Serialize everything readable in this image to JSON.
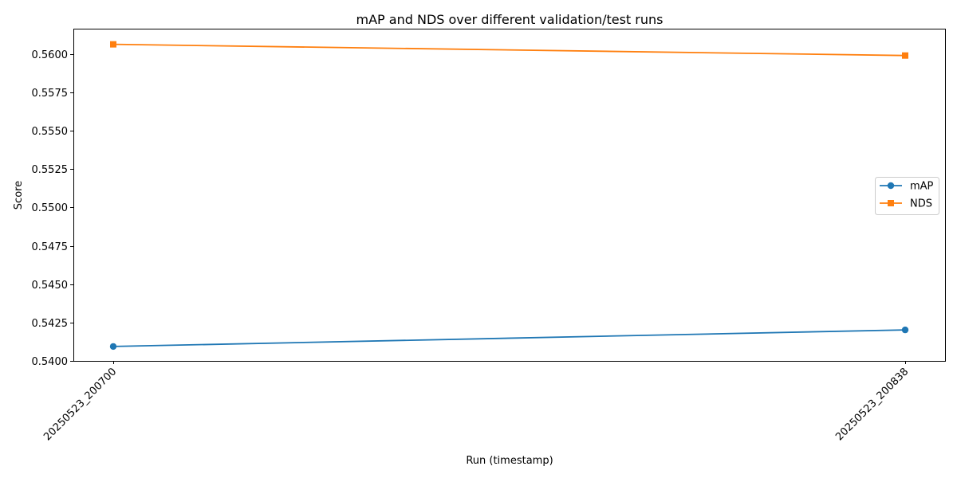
{
  "chart_data": {
    "type": "line",
    "title": "mAP and NDS over different validation/test runs",
    "xlabel": "Run (timestamp)",
    "ylabel": "Score",
    "categories": [
      "20250523_200700",
      "20250523_200838"
    ],
    "series": [
      {
        "name": "mAP",
        "values": [
          0.54094,
          0.54202
        ],
        "color": "#1f77b4",
        "marker": "circle"
      },
      {
        "name": "NDS",
        "values": [
          0.56063,
          0.5599
        ],
        "color": "#ff7f0e",
        "marker": "square"
      }
    ],
    "ylim": [
      0.54,
      0.56165
    ],
    "yticks": [
      "0.5400",
      "0.5425",
      "0.5450",
      "0.5475",
      "0.5500",
      "0.5525",
      "0.5550",
      "0.5575",
      "0.5600"
    ],
    "grid": false,
    "legend_position": "center-right"
  }
}
